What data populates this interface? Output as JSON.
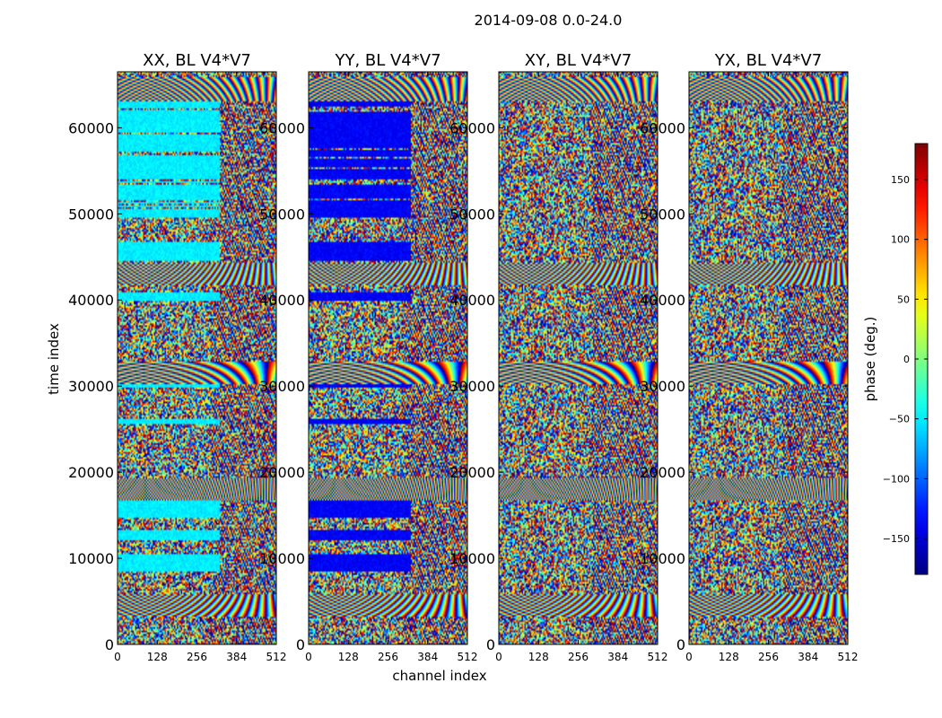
{
  "figure": {
    "suptitle": "2014-09-08 0.0-24.0",
    "xlabel": "channel index",
    "ylabel": "time index"
  },
  "chart_data": {
    "type": "heatmap",
    "title": "2014-09-08 0.0-24.0",
    "xlabel": "channel index",
    "ylabel": "time index",
    "xlim": [
      0,
      512
    ],
    "ylim": [
      0,
      66500
    ],
    "x_ticks": [
      0,
      128,
      256,
      384,
      512
    ],
    "y_ticks": [
      0,
      10000,
      20000,
      30000,
      40000,
      50000,
      60000
    ],
    "panels": [
      {
        "name": "XX",
        "title": "XX, BL V4*V7",
        "baseline_hue": "cyan"
      },
      {
        "name": "YY",
        "title": "YY, BL V4*V7",
        "baseline_hue": "blue"
      },
      {
        "name": "XY",
        "title": "XY, BL V4*V7",
        "baseline_hue": "noise"
      },
      {
        "name": "YX",
        "title": "YX, BL V4*V7",
        "baseline_hue": "noise"
      }
    ],
    "colorbar": {
      "label": "phase (deg.)",
      "range": [
        -180,
        180
      ],
      "ticks": [
        -150,
        -100,
        -50,
        0,
        50,
        100,
        150
      ],
      "tick_labels": [
        "−150",
        "−100",
        "−50",
        "0",
        "50",
        "100",
        "150"
      ],
      "colormap": "jet"
    },
    "fringe_bands_time_index": [
      4500,
      18000,
      31500,
      43000,
      64500
    ]
  }
}
